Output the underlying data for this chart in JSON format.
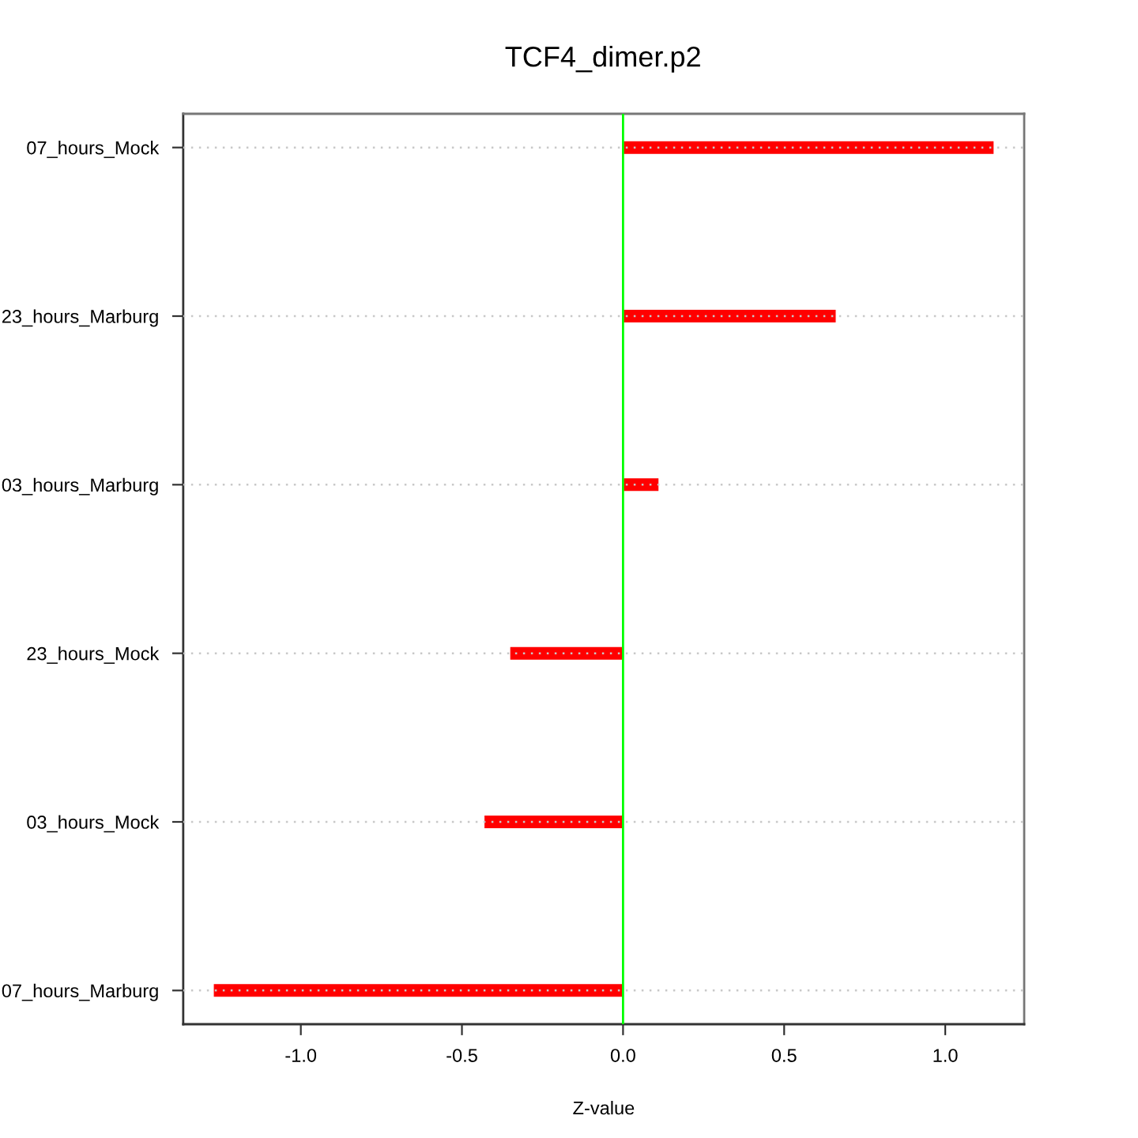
{
  "chart_data": {
    "type": "bar",
    "orientation": "horizontal",
    "title": "TCF4_dimer.p2",
    "xlabel": "Z-value",
    "categories": [
      "07_hours_Mock",
      "23_hours_Marburg",
      "03_hours_Marburg",
      "23_hours_Mock",
      "03_hours_Mock",
      "07_hours_Marburg"
    ],
    "values": [
      1.15,
      0.66,
      0.11,
      -0.35,
      -0.43,
      -1.27
    ],
    "color": "#ff0000",
    "xlim": [
      -1.365,
      1.245
    ],
    "xticks": [
      {
        "value": -1,
        "label": "-1.0"
      },
      -0.5,
      {
        "value": 0,
        "label": "0.0"
      },
      0.5,
      {
        "value": 1,
        "label": "1.0"
      }
    ],
    "ref_lines": [
      {
        "axis": "x",
        "value": 0,
        "color": "#00ff00",
        "line_style": "solid"
      }
    ],
    "grid": "y"
  }
}
